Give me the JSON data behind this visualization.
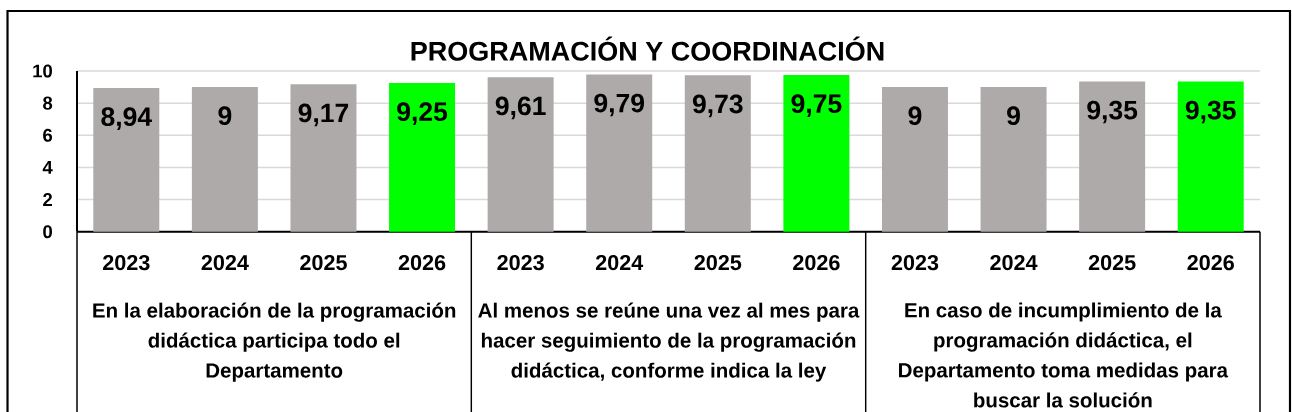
{
  "chart_data": {
    "type": "bar",
    "title": "PROGRAMACIÓN Y COORDINACIÓN",
    "categories": [
      "2023",
      "2024",
      "2025",
      "2026",
      "2023",
      "2024",
      "2025",
      "2026",
      "2023",
      "2024",
      "2025",
      "2026"
    ],
    "values": [
      8.94,
      9,
      9.17,
      9.25,
      9.61,
      9.79,
      9.73,
      9.75,
      9,
      9,
      9.35,
      9.35
    ],
    "value_labels": [
      "8,94",
      "9",
      "9,17",
      "9,25",
      "9,61",
      "9,79",
      "9,73",
      "9,75",
      "9",
      "9",
      "9,35",
      "9,35"
    ],
    "colors": [
      "#aeaaaa",
      "#aeaaaa",
      "#aeaaaa",
      "#00ff00",
      "#aeaaaa",
      "#aeaaaa",
      "#aeaaaa",
      "#00ff00",
      "#aeaaaa",
      "#aeaaaa",
      "#aeaaaa",
      "#00ff00"
    ],
    "ylim": [
      0,
      10
    ],
    "yticks": [
      0,
      2,
      4,
      6,
      8,
      10
    ],
    "grid": "y",
    "annotations": [
      "En la elaboración de la programación didáctica participa todo el Departamento",
      "Al menos se reúne una vez al mes para hacer seguimiento de la programación didáctica, conforme indica la ley",
      "En caso de incumplimiento de la programación didáctica, el Departamento toma medidas para buscar la solución"
    ]
  }
}
